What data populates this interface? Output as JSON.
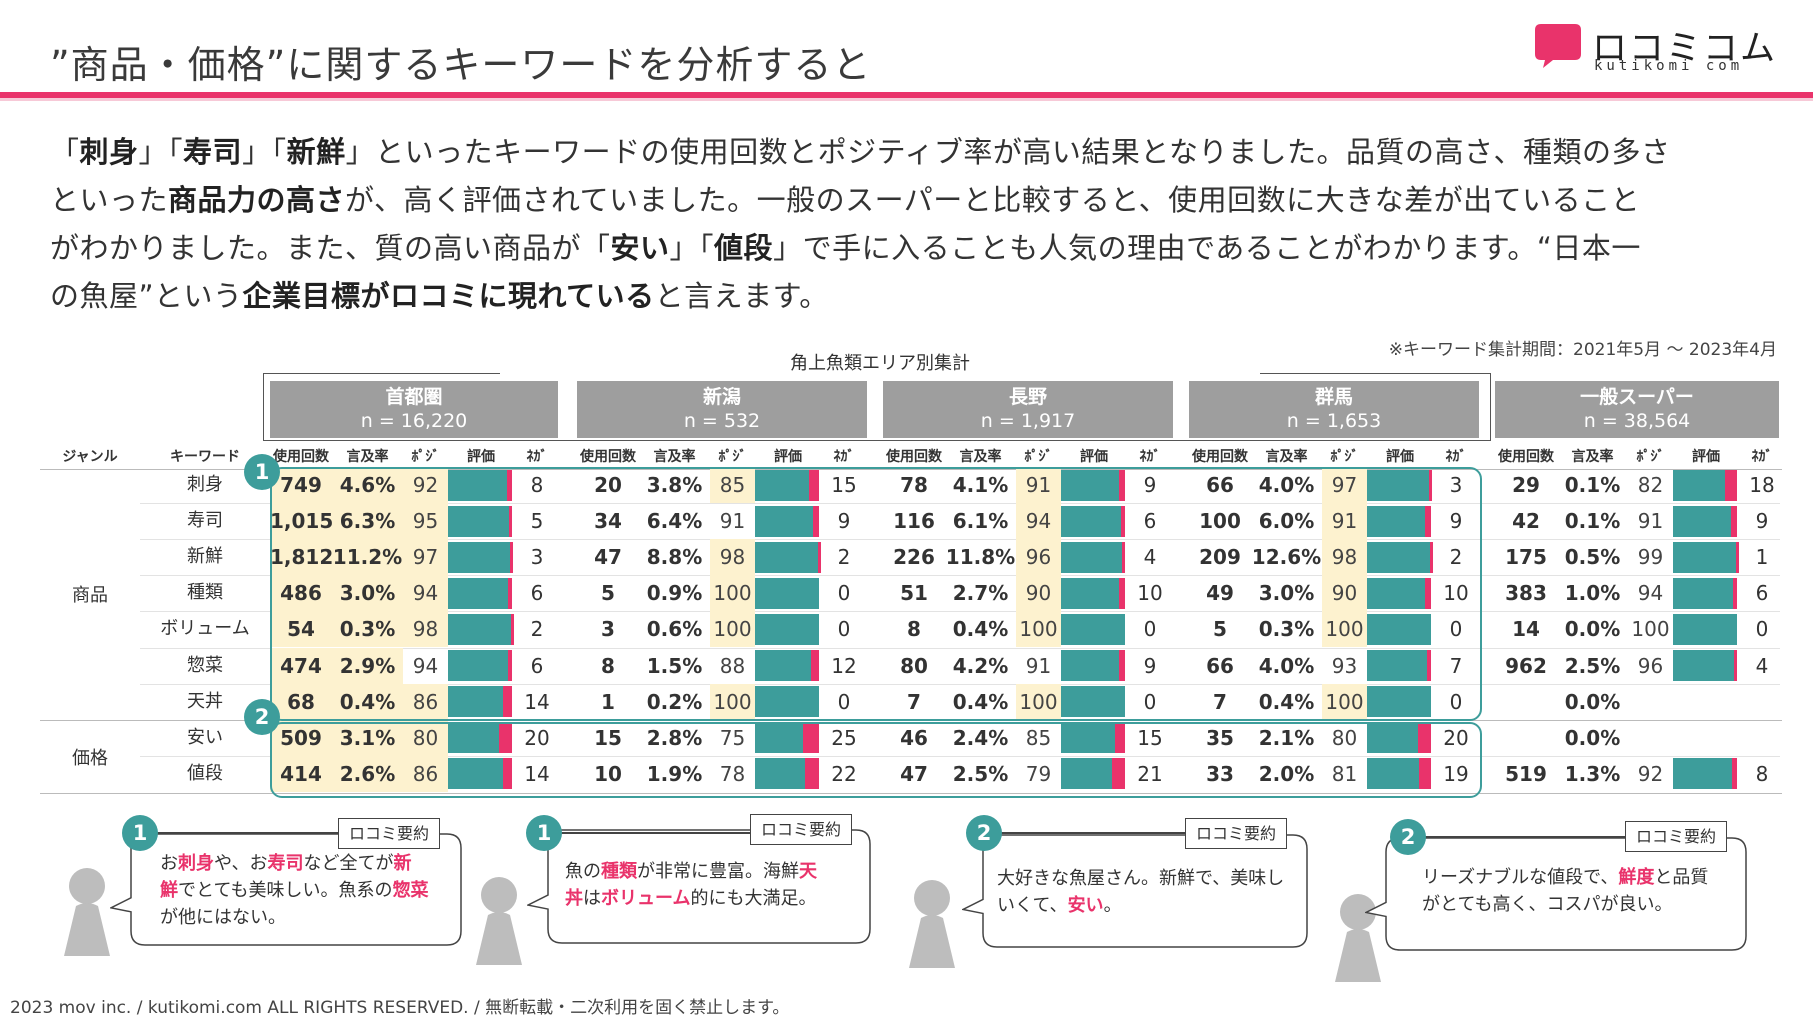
{
  "header": {
    "title": "”商品・価格”に関するキーワードを分析すると",
    "logo_text": "ロコミコム",
    "logo_sub": "kutikomi com"
  },
  "intro": {
    "line1_a": "「",
    "line1_b": "刺身",
    "line1_c": "」「",
    "line1_d": "寿司",
    "line1_e": "」「",
    "line1_f": "新鮮",
    "line1_g": "」といったキーワードの使用回数とポジティブ率が高い結果となりました。品質の高さ、種類の多さ",
    "line2_a": "といった",
    "line2_b": "商品力の高さ",
    "line2_c": "が、高く評価されていました。一般のスーパーと比較すると、使用回数に大きな差が出ていること",
    "line3_a": "がわかりました。また、質の高い商品が「",
    "line3_b": "安い",
    "line3_c": "」「",
    "line3_d": "値段",
    "line3_e": "」で手に入ることも人気の理由であることがわかります。“日本一",
    "line4_a": "の魚屋”という",
    "line4_b": "企業目標がロコミに現れている",
    "line4_c": "と言えます。"
  },
  "period": "※キーワード集計期間：2021年5月 〜 2023年4月",
  "aggregate_label": "角上魚類エリア別集計",
  "regions": [
    {
      "name": "首都圏",
      "n": "n = 16,220"
    },
    {
      "name": "新潟",
      "n": "n = 532"
    },
    {
      "name": "長野",
      "n": "n = 1,917"
    },
    {
      "name": "群馬",
      "n": "n = 1,653"
    },
    {
      "name": "一般スーパー",
      "n": "n = 38,564"
    }
  ],
  "columns": {
    "genre": "ジャンル",
    "keyword": "キーワード",
    "count": "使用回数",
    "rate": "言及率",
    "pos": "ﾎﾟｼﾞ",
    "eval": "評価",
    "neg": "ﾈｶﾞ"
  },
  "genres": {
    "product": "商品",
    "price": "価格"
  },
  "keywords": [
    "刺身",
    "寿司",
    "新鮮",
    "種類",
    "ボリューム",
    "惣菜",
    "天丼",
    "安い",
    "値段"
  ],
  "table": [
    [
      [
        "749",
        "4.6%",
        "92",
        "8"
      ],
      [
        "20",
        "3.8%",
        "85",
        "15"
      ],
      [
        "78",
        "4.1%",
        "91",
        "9"
      ],
      [
        "66",
        "4.0%",
        "97",
        "3"
      ],
      [
        "29",
        "0.1%",
        "82",
        "18"
      ]
    ],
    [
      [
        "1,015",
        "6.3%",
        "95",
        "5"
      ],
      [
        "34",
        "6.4%",
        "91",
        "9"
      ],
      [
        "116",
        "6.1%",
        "94",
        "6"
      ],
      [
        "100",
        "6.0%",
        "91",
        "9"
      ],
      [
        "42",
        "0.1%",
        "91",
        "9"
      ]
    ],
    [
      [
        "1,812",
        "11.2%",
        "97",
        "3"
      ],
      [
        "47",
        "8.8%",
        "98",
        "2"
      ],
      [
        "226",
        "11.8%",
        "96",
        "4"
      ],
      [
        "209",
        "12.6%",
        "98",
        "2"
      ],
      [
        "175",
        "0.5%",
        "99",
        "1"
      ]
    ],
    [
      [
        "486",
        "3.0%",
        "94",
        "6"
      ],
      [
        "5",
        "0.9%",
        "100",
        "0"
      ],
      [
        "51",
        "2.7%",
        "90",
        "10"
      ],
      [
        "49",
        "3.0%",
        "90",
        "10"
      ],
      [
        "383",
        "1.0%",
        "94",
        "6"
      ]
    ],
    [
      [
        "54",
        "0.3%",
        "98",
        "2"
      ],
      [
        "3",
        "0.6%",
        "100",
        "0"
      ],
      [
        "8",
        "0.4%",
        "100",
        "0"
      ],
      [
        "5",
        "0.3%",
        "100",
        "0"
      ],
      [
        "14",
        "0.0%",
        "100",
        "0"
      ]
    ],
    [
      [
        "474",
        "2.9%",
        "94",
        "6"
      ],
      [
        "8",
        "1.5%",
        "88",
        "12"
      ],
      [
        "80",
        "4.2%",
        "91",
        "9"
      ],
      [
        "66",
        "4.0%",
        "93",
        "7"
      ],
      [
        "962",
        "2.5%",
        "96",
        "4"
      ]
    ],
    [
      [
        "68",
        "0.4%",
        "86",
        "14"
      ],
      [
        "1",
        "0.2%",
        "100",
        "0"
      ],
      [
        "7",
        "0.4%",
        "100",
        "0"
      ],
      [
        "7",
        "0.4%",
        "100",
        "0"
      ],
      [
        "",
        "0.0%",
        "",
        ""
      ]
    ],
    [
      [
        "509",
        "3.1%",
        "80",
        "20"
      ],
      [
        "15",
        "2.8%",
        "75",
        "25"
      ],
      [
        "46",
        "2.4%",
        "85",
        "15"
      ],
      [
        "35",
        "2.1%",
        "80",
        "20"
      ],
      [
        "",
        "0.0%",
        "",
        ""
      ]
    ],
    [
      [
        "414",
        "2.6%",
        "86",
        "14"
      ],
      [
        "10",
        "1.9%",
        "78",
        "22"
      ],
      [
        "47",
        "2.5%",
        "79",
        "21"
      ],
      [
        "33",
        "2.0%",
        "81",
        "19"
      ],
      [
        "519",
        "1.3%",
        "92",
        "8"
      ]
    ]
  ],
  "badges": {
    "one": "1",
    "two": "2"
  },
  "reviews": [
    {
      "badge": "1",
      "tag": "ロコミ要約",
      "l1a": "お",
      "l1b": "刺身",
      "l1c": "や、お",
      "l1d": "寿司",
      "l1e": "など全てが",
      "l1f": "新",
      "l2a": "鮮",
      "l2b": "でとても美味しい。魚系の",
      "l2c": "惣菜",
      "l3": "が他にはない。"
    },
    {
      "badge": "1",
      "tag": "ロコミ要約",
      "l1a": "魚の",
      "l1b": "種類",
      "l1c": "が非常に豊富。海鮮",
      "l1d": "天",
      "l2a": "丼",
      "l2b": "は",
      "l2c": "ボリューム",
      "l2d": "的にも大満足。"
    },
    {
      "badge": "2",
      "tag": "ロコミ要約",
      "l1": "大好きな魚屋さん。新鮮で、美味し",
      "l2a": "いくて、",
      "l2b": "安い",
      "l2c": "。"
    },
    {
      "badge": "2",
      "tag": "ロコミ要約",
      "l1a": "リーズナブルな値段で、",
      "l1b": "鮮度",
      "l1c": "と品質",
      "l2": "がとても高く、コスパが良い。"
    }
  ],
  "footer": "2023 mov inc. / kutikomi.com ALL RIGHTS RESERVED. / 無断転載・二次利用を固く禁止します。",
  "colors": {
    "accent": "#e9336b",
    "teal": "#3d9d9b",
    "region_header": "#9e9e9e",
    "highlight": "#fdf2cf"
  }
}
